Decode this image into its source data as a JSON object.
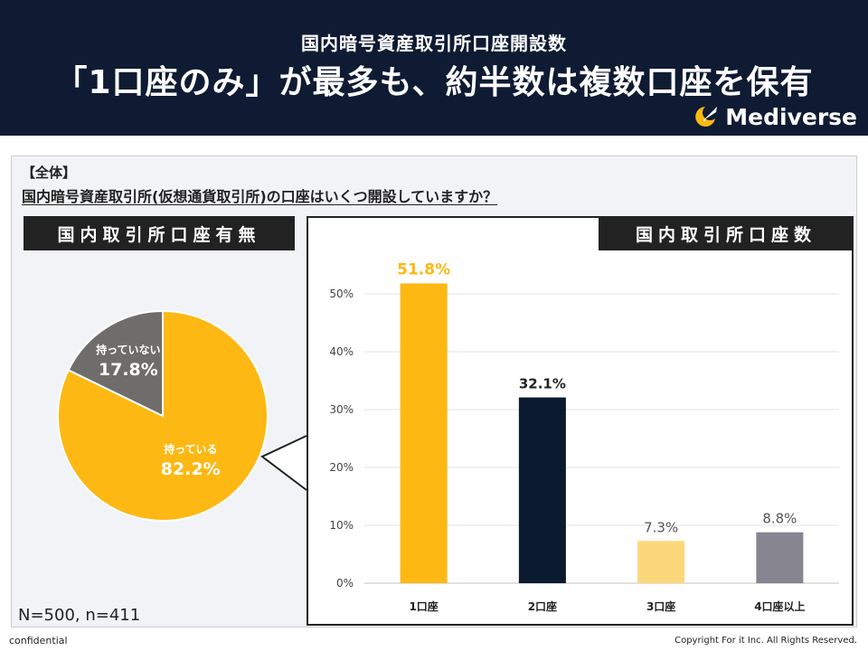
{
  "header": {
    "subtitle": "国内暗号資産取引所口座開設数",
    "title": "「1口座のみ」が最多も、約半数は複数口座を保有",
    "logo_text": "Mediverse",
    "background": "#0f1b33"
  },
  "question": {
    "label": "【全体】",
    "text": "国内暗号資産取引所(仮想通貨取引所)の口座はいくつ開設していますか？"
  },
  "sample": "N=500, n=411",
  "footer": {
    "left": "confidential",
    "right": "Copyright For it Inc. All Rights Reserved."
  },
  "chart_data": [
    {
      "type": "pie",
      "title": "国内取引所口座有無",
      "slices": [
        {
          "label": "持っている",
          "value": 82.2,
          "display": "82.2%",
          "color": "#fdb813"
        },
        {
          "label": "持っていない",
          "value": 17.8,
          "display": "17.8%",
          "color": "#6f6c6c"
        }
      ]
    },
    {
      "type": "bar",
      "title": "国内取引所口座数",
      "categories": [
        "1口座",
        "2口座",
        "3口座",
        "4口座以上"
      ],
      "values": [
        51.8,
        32.1,
        7.3,
        8.8
      ],
      "value_labels": [
        "51.8%",
        "32.1%",
        "7.3%",
        "8.8%"
      ],
      "colors": [
        "#fdb813",
        "#0b1a2e",
        "#fcd77a",
        "#87858f"
      ],
      "label_colors": [
        "#fdb813",
        "#222222",
        "#555555",
        "#555555"
      ],
      "ylim": [
        0,
        50
      ],
      "yticks": [
        "0%",
        "10%",
        "20%",
        "30%",
        "40%",
        "50%"
      ],
      "grid": true
    }
  ]
}
